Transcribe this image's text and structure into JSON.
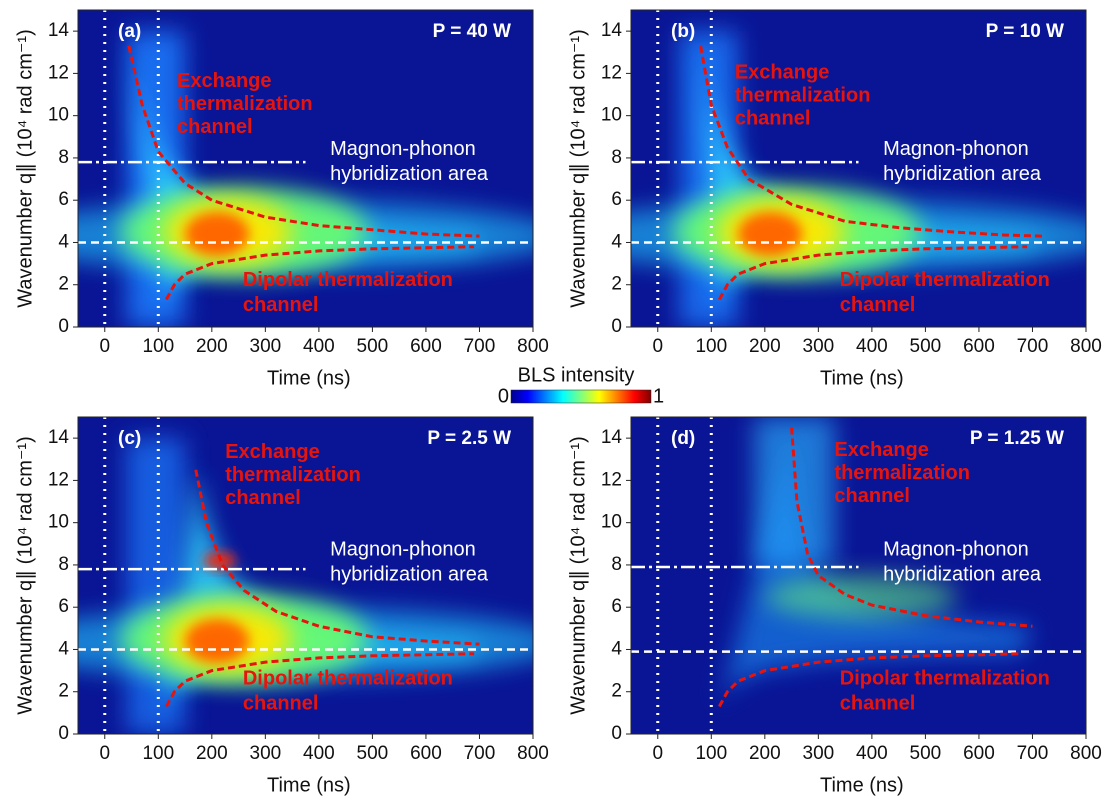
{
  "chart_data": [
    {
      "type": "heatmap",
      "panel": "(a)",
      "power": "P = 40 W",
      "xlabel": "Time (ns)",
      "ylabel": "Wavenumber q∥ (10⁴ rad cm⁻¹)",
      "xlim": [
        -50,
        800
      ],
      "ylim": [
        0,
        15
      ],
      "xticks": [
        0,
        100,
        200,
        300,
        400,
        500,
        600,
        700,
        800
      ],
      "yticks": [
        0,
        2,
        4,
        6,
        8,
        10,
        12,
        14
      ],
      "exchange_label": [
        "Exchange",
        "thermalization",
        "channel"
      ],
      "hybrid_label": [
        "Magnon-phonon",
        "hybridization area"
      ],
      "dipolar_label": [
        "Dipolar thermalization",
        "channel"
      ],
      "reference_lines": {
        "dipolar_q": 4,
        "hybrid_q": 7.8,
        "times": [
          0,
          100
        ]
      },
      "exchange_curve": {
        "x": [
          45,
          70,
          100,
          150,
          200,
          300,
          400,
          500,
          600,
          700
        ],
        "y": [
          13.3,
          10.5,
          8.3,
          6.8,
          6.0,
          5.2,
          4.8,
          4.6,
          4.4,
          4.3
        ]
      },
      "dipolar_curve": {
        "x": [
          115,
          130,
          150,
          200,
          300,
          400,
          500,
          600,
          690
        ],
        "y": [
          1.3,
          2.0,
          2.5,
          3.0,
          3.4,
          3.6,
          3.7,
          3.75,
          3.8
        ]
      }
    },
    {
      "type": "heatmap",
      "panel": "(b)",
      "power": "P = 10 W",
      "xlabel": "Time (ns)",
      "ylabel": "Wavenumber q∥ (10⁴ rad cm⁻¹)",
      "xlim": [
        -50,
        800
      ],
      "ylim": [
        0,
        15
      ],
      "xticks": [
        0,
        100,
        200,
        300,
        400,
        500,
        600,
        700,
        800
      ],
      "yticks": [
        0,
        2,
        4,
        6,
        8,
        10,
        12,
        14
      ],
      "exchange_label": [
        "Exchange",
        "thermalization",
        "channel"
      ],
      "hybrid_label": [
        "Magnon-phonon",
        "hybridization area"
      ],
      "dipolar_label": [
        "Dipolar thermalization",
        "channel"
      ],
      "reference_lines": {
        "dipolar_q": 4,
        "hybrid_q": 7.8,
        "times": [
          0,
          100
        ]
      },
      "exchange_curve": {
        "x": [
          80,
          100,
          130,
          170,
          250,
          350,
          450,
          550,
          650,
          720
        ],
        "y": [
          13.3,
          10.5,
          8.5,
          7.0,
          5.8,
          5.0,
          4.7,
          4.5,
          4.35,
          4.3
        ]
      },
      "dipolar_curve": {
        "x": [
          115,
          130,
          150,
          200,
          300,
          400,
          500,
          600,
          690
        ],
        "y": [
          1.3,
          2.0,
          2.5,
          3.0,
          3.4,
          3.6,
          3.7,
          3.75,
          3.8
        ]
      }
    },
    {
      "type": "heatmap",
      "panel": "(c)",
      "power": "P = 2.5 W",
      "xlabel": "Time (ns)",
      "ylabel": "Wavenumber q∥ (10⁴ rad cm⁻¹)",
      "xlim": [
        -50,
        800
      ],
      "ylim": [
        0,
        15
      ],
      "xticks": [
        0,
        100,
        200,
        300,
        400,
        500,
        600,
        700,
        800
      ],
      "yticks": [
        0,
        2,
        4,
        6,
        8,
        10,
        12,
        14
      ],
      "exchange_label": [
        "Exchange",
        "thermalization",
        "channel"
      ],
      "hybrid_label": [
        "Magnon-phonon",
        "hybridization area"
      ],
      "dipolar_label": [
        "Dipolar thermalization",
        "channel"
      ],
      "reference_lines": {
        "dipolar_q": 4,
        "hybrid_q": 7.8,
        "times": [
          0,
          100
        ]
      },
      "exchange_curve": {
        "x": [
          170,
          190,
          220,
          260,
          320,
          400,
          500,
          600,
          700
        ],
        "y": [
          12.5,
          10,
          8,
          6.8,
          5.8,
          5.1,
          4.6,
          4.4,
          4.25
        ]
      },
      "dipolar_curve": {
        "x": [
          115,
          130,
          150,
          200,
          300,
          400,
          500,
          600,
          690
        ],
        "y": [
          1.3,
          2.0,
          2.5,
          3.0,
          3.4,
          3.6,
          3.7,
          3.75,
          3.8
        ]
      }
    },
    {
      "type": "heatmap",
      "panel": "(d)",
      "power": "P = 1.25 W",
      "xlabel": "Time (ns)",
      "ylabel": "Wavenumber q∥ (10⁴ rad cm⁻¹)",
      "xlim": [
        -50,
        800
      ],
      "ylim": [
        0,
        15
      ],
      "xticks": [
        0,
        100,
        200,
        300,
        400,
        500,
        600,
        700,
        800
      ],
      "yticks": [
        0,
        2,
        4,
        6,
        8,
        10,
        12,
        14
      ],
      "exchange_label": [
        "Exchange",
        "thermalization",
        "channel"
      ],
      "hybrid_label": [
        "Magnon-phonon",
        "hybridization area"
      ],
      "dipolar_label": [
        "Dipolar thermalization",
        "channel"
      ],
      "reference_lines": {
        "dipolar_q": 3.9,
        "hybrid_q": 7.9,
        "times": [
          0,
          100
        ]
      },
      "exchange_curve": {
        "x": [
          250,
          260,
          280,
          300,
          350,
          400,
          500,
          600,
          700
        ],
        "y": [
          14.5,
          11,
          8.5,
          7.5,
          6.6,
          6.1,
          5.6,
          5.3,
          5.1
        ]
      },
      "dipolar_curve": {
        "x": [
          115,
          130,
          150,
          200,
          300,
          400,
          500,
          600,
          680
        ],
        "y": [
          1.3,
          2.0,
          2.5,
          3.0,
          3.4,
          3.6,
          3.7,
          3.75,
          3.8
        ]
      }
    }
  ],
  "colorbar": {
    "label": "BLS intensity",
    "lim": [
      0,
      1
    ],
    "ticks": [
      0,
      1
    ]
  }
}
